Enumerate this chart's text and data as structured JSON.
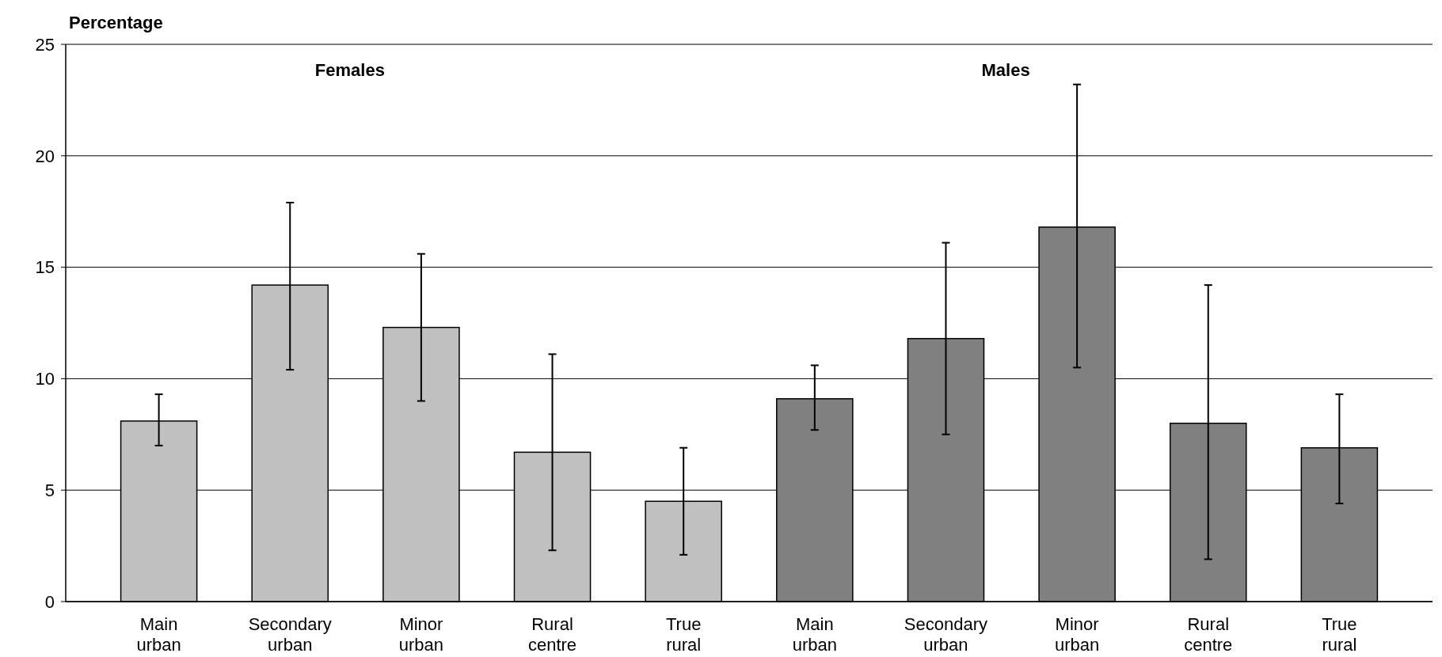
{
  "chart_data": {
    "type": "bar",
    "ylabel": "Percentage",
    "categories": [
      "Main urban",
      "Secondary urban",
      "Minor urban",
      "Rural centre",
      "True rural",
      "Main urban",
      "Secondary urban",
      "Minor urban",
      "Rural centre",
      "True rural"
    ],
    "values": [
      8.1,
      14.2,
      12.3,
      6.7,
      4.5,
      9.1,
      11.8,
      16.8,
      8.0,
      6.9
    ],
    "colors": [
      "#c0c0c0",
      "#c0c0c0",
      "#c0c0c0",
      "#c0c0c0",
      "#c0c0c0",
      "#808080",
      "#808080",
      "#808080",
      "#808080",
      "#808080"
    ],
    "errors": [
      [
        7.0,
        9.3
      ],
      [
        10.4,
        17.9
      ],
      [
        9.0,
        15.6
      ],
      [
        2.3,
        11.1
      ],
      [
        2.1,
        6.9
      ],
      [
        7.7,
        10.6
      ],
      [
        7.5,
        16.1
      ],
      [
        10.5,
        23.2
      ],
      [
        1.9,
        14.2
      ],
      [
        4.4,
        9.3
      ]
    ],
    "annotations": [
      "Females",
      "Males"
    ],
    "ylim": [
      0,
      25
    ],
    "yticks": [
      0,
      5,
      10,
      15,
      20,
      25
    ],
    "grid": "y"
  }
}
